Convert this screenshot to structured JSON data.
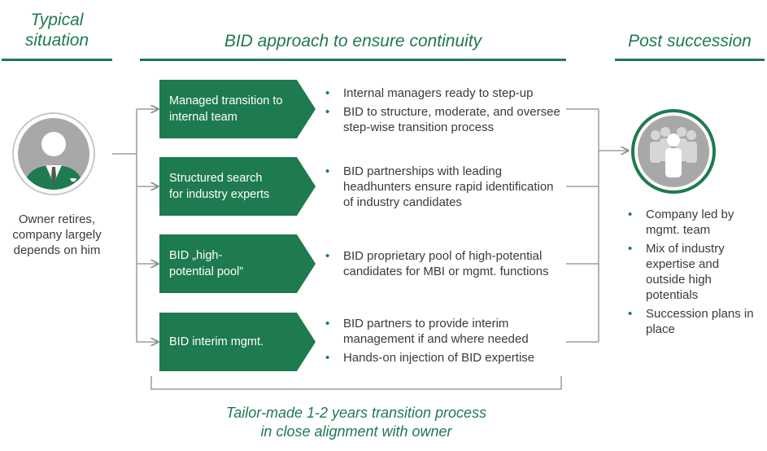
{
  "headers": {
    "left": "Typical\nsituation",
    "center": "BID approach to ensure continuity",
    "right": "Post succession"
  },
  "owner": {
    "icon": "businessman-icon",
    "text": "Owner retires, company largely depends on him"
  },
  "approaches": [
    {
      "label": "Managed transition to\ninternal team",
      "bullets": [
        "Internal managers ready to step-up",
        "BID to structure, moderate, and oversee step-wise transition process"
      ]
    },
    {
      "label": "Structured search\nfor industry experts",
      "bullets": [
        "BID partnerships with leading headhunters ensure rapid identification of industry candidates"
      ]
    },
    {
      "label": "BID „high-\npotential pool”",
      "bullets": [
        "BID proprietary pool of high-potential candidates for MBI or mgmt. functions"
      ]
    },
    {
      "label": "BID interim mgmt.",
      "bullets": [
        "BID partners to provide interim management if and where needed",
        "Hands-on injection of BID expertise"
      ]
    }
  ],
  "post": {
    "icon": "team-icon",
    "bullets": [
      "Company led by mgmt. team",
      "Mix of industry expertise and outside high potentials",
      "Succession plans in place"
    ]
  },
  "footer": "Tailor-made 1-2 years transition process\nin close alignment with owner",
  "colors": {
    "accent": "#1e7a4f",
    "grey_circle": "#a8a8a8",
    "line": "#8a8a8a"
  }
}
